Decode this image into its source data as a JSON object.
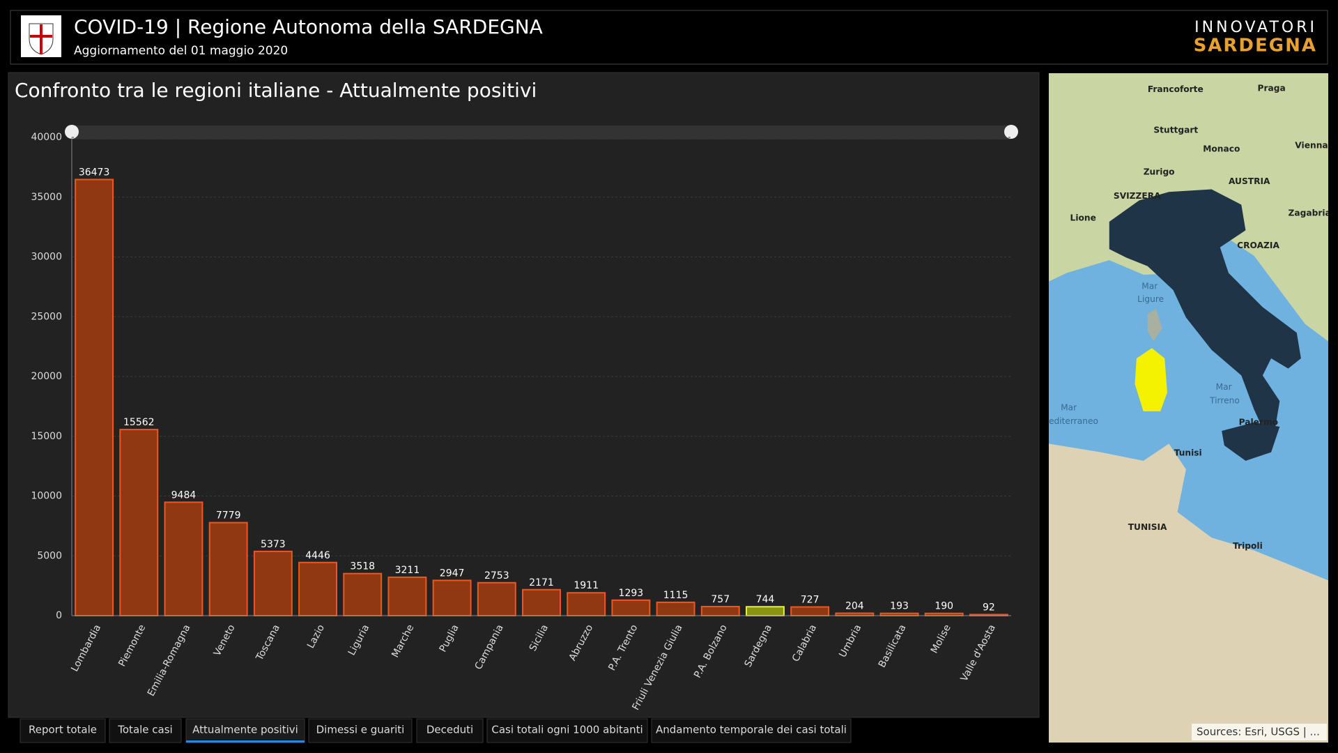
{
  "header": {
    "title": "COVID-19 | Regione Autonoma della SARDEGNA",
    "subtitle": "Aggiornamento del 01 maggio 2020",
    "brand_top": "INNOVATORI",
    "brand_bottom": "SARDEGNA"
  },
  "chart_data": {
    "type": "bar",
    "title": "Confronto tra le regioni italiane - Attualmente positivi",
    "categories": [
      "Lombardia",
      "Piemonte",
      "Emilia-Romagna",
      "Veneto",
      "Toscana",
      "Lazio",
      "Liguria",
      "Marche",
      "Puglia",
      "Campania",
      "Sicilia",
      "Abruzzo",
      "P.A. Trento",
      "Friuli Venezia Giulia",
      "P.A. Bolzano",
      "Sardegna",
      "Calabria",
      "Umbria",
      "Basilicata",
      "Molise",
      "Valle d'Aosta"
    ],
    "values": [
      36473,
      15562,
      9484,
      7779,
      5373,
      4446,
      3518,
      3211,
      2947,
      2753,
      2171,
      1911,
      1293,
      1115,
      757,
      744,
      727,
      204,
      193,
      190,
      92
    ],
    "colors": [
      "#8f3812",
      "#8f3812",
      "#8f3812",
      "#8f3812",
      "#8f3812",
      "#8f3812",
      "#8f3812",
      "#8f3812",
      "#8f3812",
      "#8f3812",
      "#8f3812",
      "#8f3812",
      "#8f3812",
      "#8f3812",
      "#8f3812",
      "#8a9412",
      "#8f3812",
      "#8f3812",
      "#8f3812",
      "#8f3812",
      "#8f3812"
    ],
    "edge_colors": [
      "#f0561f",
      "#f0561f",
      "#f0561f",
      "#f0561f",
      "#f0561f",
      "#f0561f",
      "#f0561f",
      "#f0561f",
      "#f0561f",
      "#f0561f",
      "#f0561f",
      "#f0561f",
      "#f0561f",
      "#f0561f",
      "#f0561f",
      "#e6f03a",
      "#f0561f",
      "#f0561f",
      "#f0561f",
      "#f0561f",
      "#f0561f"
    ],
    "ylim": [
      0,
      40000
    ],
    "yticks": [
      0,
      5000,
      10000,
      15000,
      20000,
      25000,
      30000,
      35000,
      40000
    ],
    "grid": true
  },
  "map": {
    "labels": [
      "Francoforte",
      "Praga",
      "Stuttgart",
      "Monaco",
      "Vienna",
      "Zurigo",
      "AUSTRIA",
      "SVIZZERA",
      "Lione",
      "Zagabria",
      "CROAZIA",
      "Mar",
      "Ligure",
      "Mar",
      "Tirreno",
      "Mar",
      "editerraneo",
      "Palermo",
      "Tunisi",
      "TUNISIA",
      "Tripoli"
    ],
    "attribution": "Sources: Esri, USGS | ..."
  },
  "tabs": [
    "Report totale",
    "Totale casi",
    "Attualmente positivi",
    "Dimessi e guariti",
    "Deceduti",
    "Casi totali ogni 1000 abitanti",
    "Andamento temporale dei casi totali"
  ],
  "active_tab": 2
}
